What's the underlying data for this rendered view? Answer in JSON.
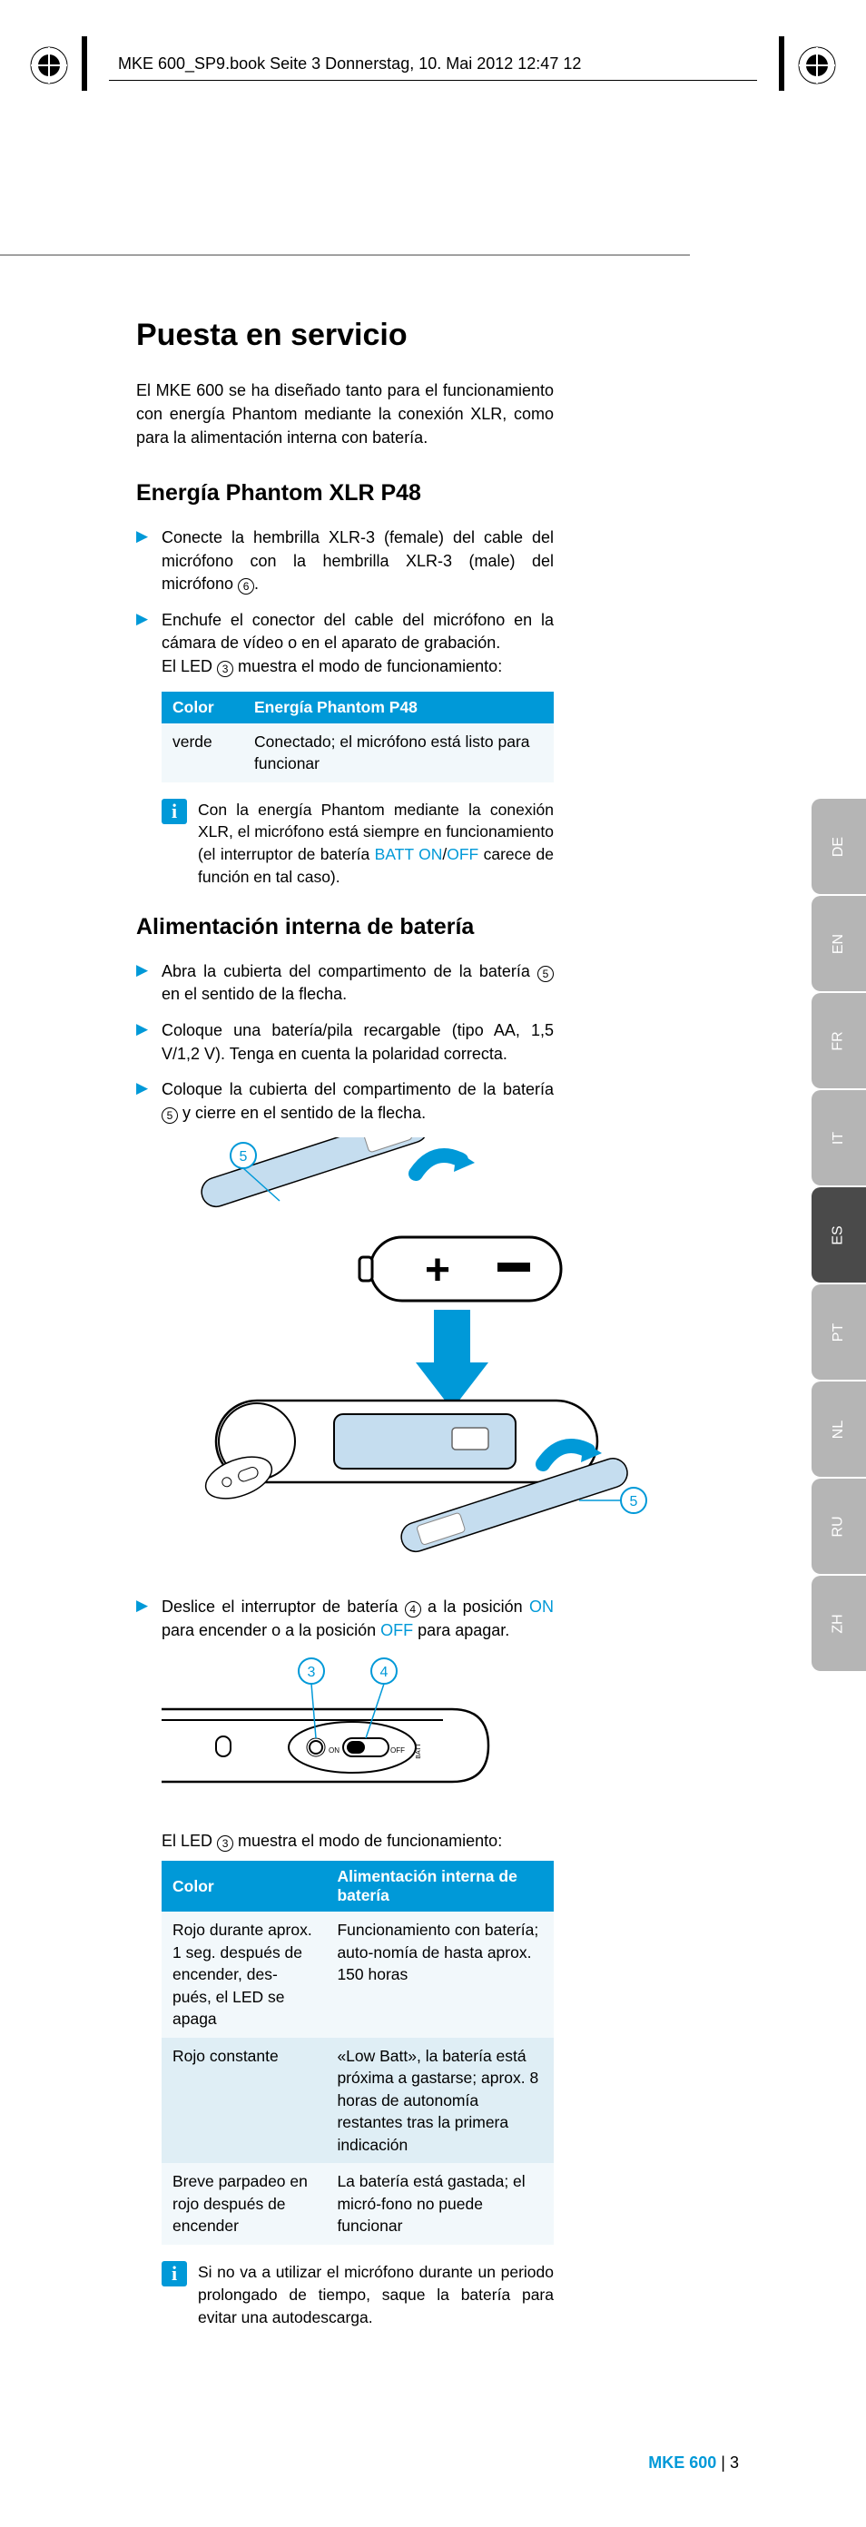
{
  "print_header": "MKE 600_SP9.book  Seite 3  Donnerstag, 10. Mai 2012  12:47 12",
  "title": "Puesta en servicio",
  "intro": "El MKE 600 se ha diseñado tanto para el funcionamiento con energía Phantom mediante la conexión XLR, como para la alimentación interna con batería.",
  "section1": {
    "heading": "Energía Phantom XLR P48",
    "step1_a": "Conecte la hembrilla XLR-3 (female) del cable del micrófono con la hembrilla XLR-3 (male) del micrófono ",
    "step1_ref": "6",
    "step1_b": ".",
    "step2_a": "Enchufe el conector del cable del micrófono en la cámara de vídeo o en el aparato de grabación.",
    "step2_b_a": "El LED ",
    "step2_b_ref": "3",
    "step2_b_b": " muestra el modo de funcionamiento:",
    "table": {
      "h1": "Color",
      "h2": "Energía Phantom P48",
      "r1c1": "verde",
      "r1c2": "Conectado; el micrófono está listo para funcionar"
    },
    "info_a": "Con la energía Phantom mediante la conexión XLR, el micrófono está siempre en funcionamiento (el interruptor de batería ",
    "info_batt": "BATT ON",
    "info_slash": "/",
    "info_off": "OFF",
    "info_b": " carece de función en tal caso)."
  },
  "section2": {
    "heading": "Alimentación interna de batería",
    "step1_a": "Abra la cubierta del compartimento de la batería ",
    "step1_ref": "5",
    "step1_b": " en el sentido de la flecha.",
    "step2": "Coloque una batería/pila recargable (tipo AA, 1,5 V/1,2 V). Tenga en cuenta la polaridad correcta.",
    "step3_a": "Coloque la cubierta del compartimento de la batería ",
    "step3_ref": "5",
    "step3_b": " y cierre en el sentido de la flecha.",
    "step4_a": "Deslice el interruptor de batería ",
    "step4_ref": "4",
    "step4_b": " a la posición ",
    "step4_on": "ON",
    "step4_c": " para encender o a la posición ",
    "step4_off": "OFF",
    "step4_d": " para apagar.",
    "led_a": "El LED ",
    "led_ref": "3",
    "led_b": " muestra el modo de funcionamiento:",
    "table": {
      "h1": "Color",
      "h2": "Alimentación interna de batería",
      "r1c1": "Rojo durante aprox. 1 seg. después de encender, des-pués, el LED se apaga",
      "r1c2": "Funcionamiento con batería; auto-nomía de hasta aprox. 150 horas",
      "r2c1": "Rojo constante",
      "r2c2": "«Low Batt», la batería está próxima a gastarse; aprox. 8 horas de autonomía restantes tras la primera indicación",
      "r3c1": "Breve parpadeo en rojo después de encender",
      "r3c2": "La batería está gastada; el micró-fono no puede funcionar"
    },
    "info": "Si no va a utilizar el micrófono durante un periodo prolongado de tiempo, saque la batería para evitar una autodescarga."
  },
  "lang_tabs": [
    "DE",
    "EN",
    "FR",
    "IT",
    "ES",
    "PT",
    "NL",
    "RU",
    "ZH"
  ],
  "lang_active_index": 4,
  "footer": {
    "model": "MKE 600",
    "sep": "  |  ",
    "page": "3"
  },
  "colors": {
    "accent": "#0099d8",
    "tab_grey": "#b5b5b5",
    "tab_dark": "#4a4a4a",
    "row_light": "#f2f8fb",
    "row_med": "#dfeef5"
  },
  "figure1": {
    "callouts": [
      "5",
      "5"
    ],
    "callout_color": "#0099d8"
  },
  "figure2": {
    "callouts": [
      "3",
      "4"
    ],
    "callout_color": "#0099d8"
  }
}
